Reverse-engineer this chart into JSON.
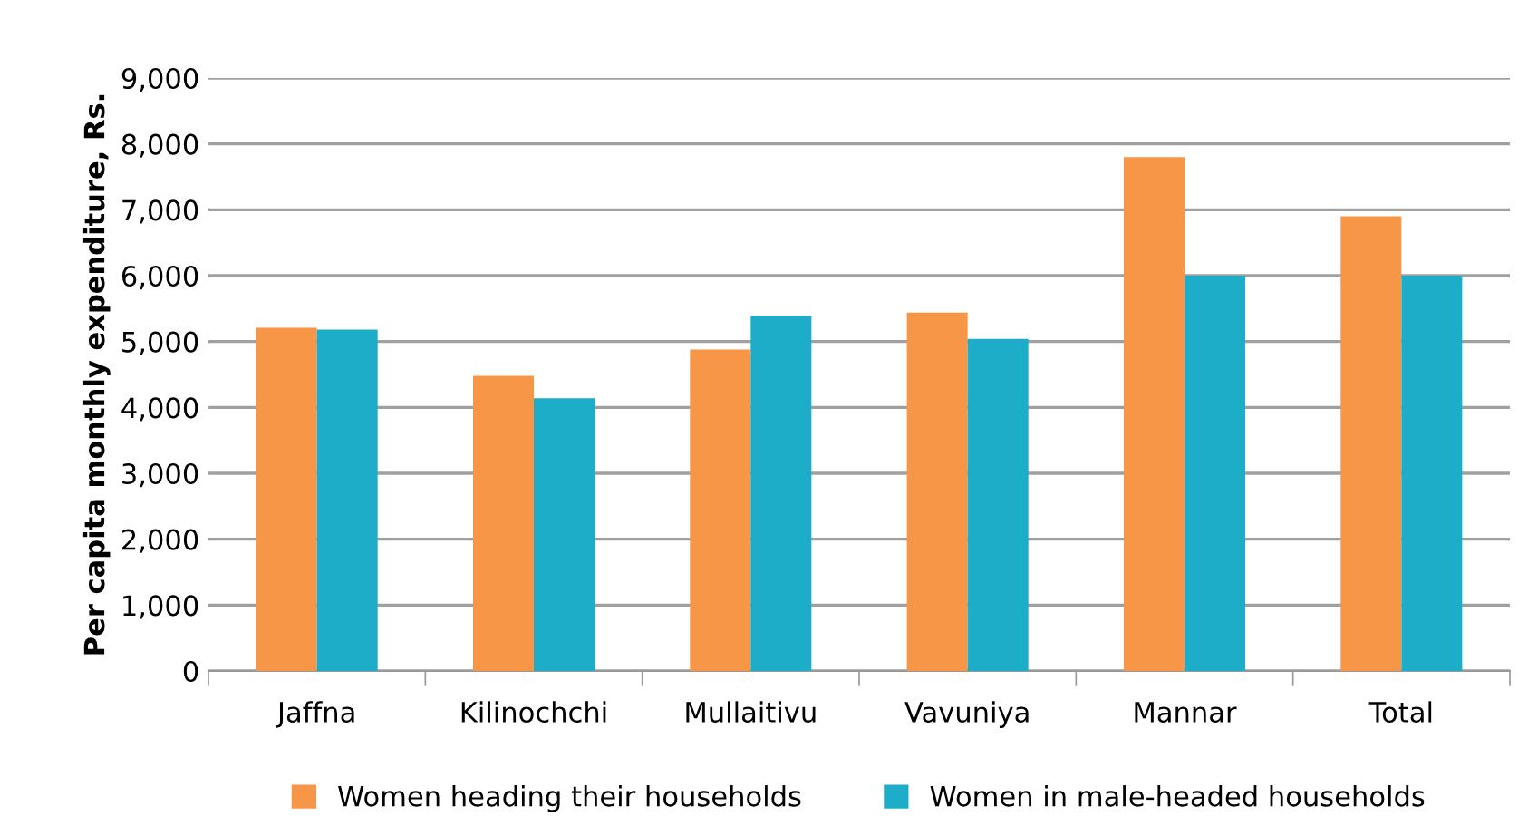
{
  "chart_data": {
    "type": "bar",
    "ylabel": "Per capita monthly expenditure, Rs.",
    "categories": [
      "Jaffna",
      "Kilinochchi",
      "Mullaitivu",
      "Vavuniya",
      "Mannar",
      "Total"
    ],
    "series": [
      {
        "name": "Women heading their households",
        "color": "#f79646",
        "values": [
          5210,
          4480,
          4880,
          5440,
          7800,
          6900
        ]
      },
      {
        "name": "Women in male-headed households",
        "color": "#1eadc9",
        "values": [
          5180,
          4140,
          5390,
          5040,
          6000,
          6000
        ]
      }
    ],
    "ylim": [
      0,
      9000
    ],
    "yticks": [
      {
        "value": 0,
        "label": "0"
      },
      {
        "value": 1000,
        "label": "1,000"
      },
      {
        "value": 2000,
        "label": "2,000"
      },
      {
        "value": 3000,
        "label": "3,000"
      },
      {
        "value": 4000,
        "label": "4,000"
      },
      {
        "value": 5000,
        "label": "5,000"
      },
      {
        "value": 6000,
        "label": "6,000"
      },
      {
        "value": 7000,
        "label": "7,000"
      },
      {
        "value": 8000,
        "label": "8,000"
      },
      {
        "value": 9000,
        "label": "9,000"
      }
    ],
    "grid": "y",
    "legend": "bottom"
  }
}
